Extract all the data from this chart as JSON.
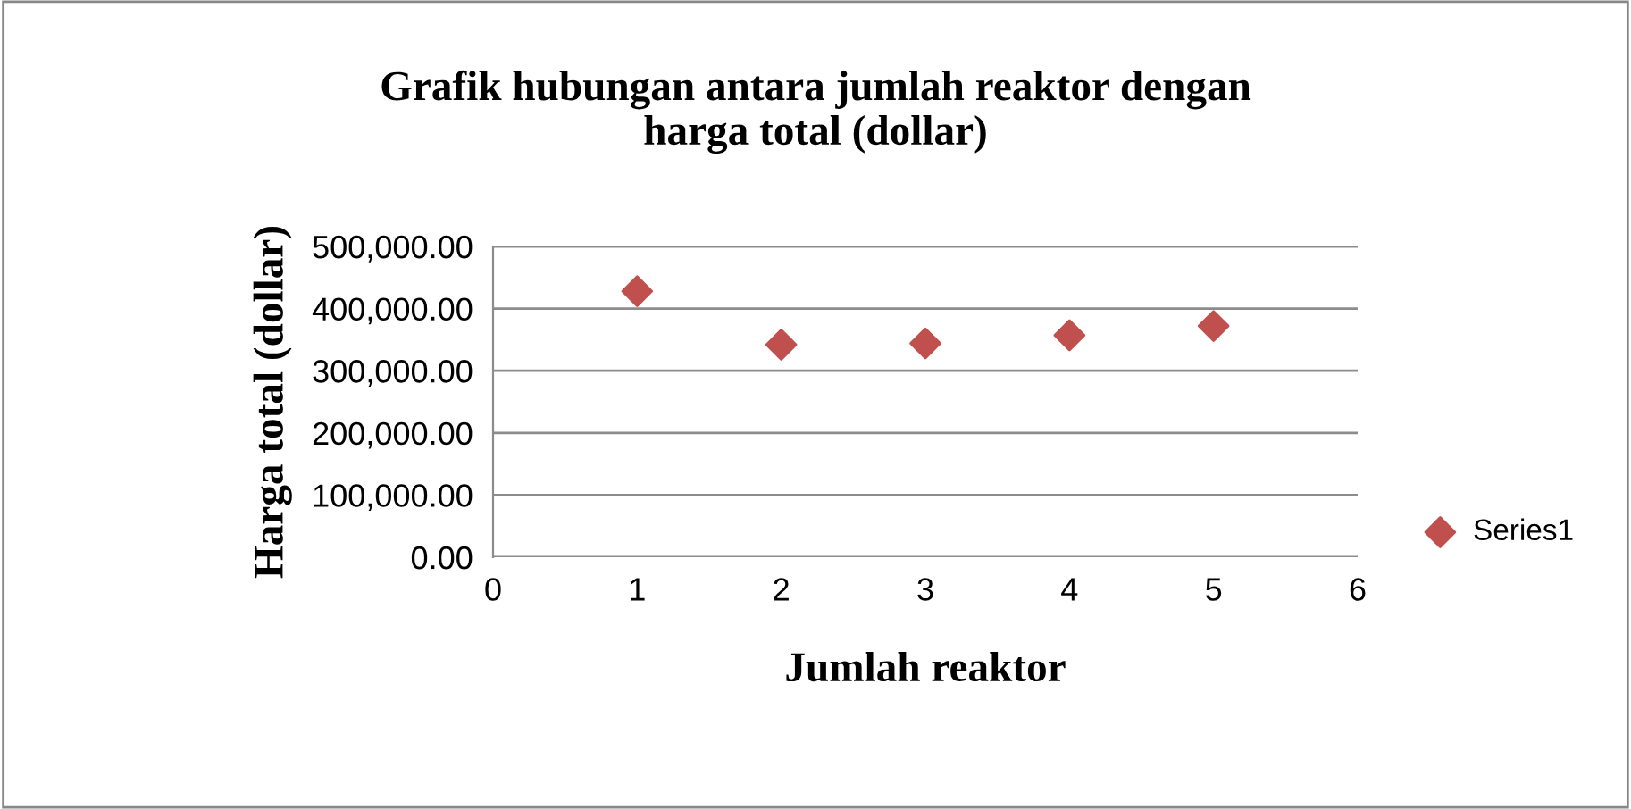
{
  "chart_data": {
    "type": "scatter",
    "title": "Grafik hubungan antara jumlah reaktor dengan\nharga total (dollar)",
    "xlabel": "Jumlah reaktor",
    "ylabel": "Harga total (dollar)",
    "x": [
      1,
      2,
      3,
      4,
      5
    ],
    "series": [
      {
        "name": "Series1",
        "color": "#c0504d",
        "values": [
          428000,
          342000,
          344000,
          357000,
          372000
        ]
      }
    ],
    "xlim": [
      0,
      6
    ],
    "xticks": [
      0,
      1,
      2,
      3,
      4,
      5,
      6
    ],
    "ylim": [
      0,
      500000
    ],
    "yticks": [
      {
        "value": 0,
        "label": "0.00"
      },
      {
        "value": 100000,
        "label": "100,000.00"
      },
      {
        "value": 200000,
        "label": "200,000.00"
      },
      {
        "value": 300000,
        "label": "300,000.00"
      },
      {
        "value": 400000,
        "label": "400,000.00"
      },
      {
        "value": 500000,
        "label": "500,000.00"
      }
    ],
    "grid": "y",
    "legend": "right",
    "marker": "diamond"
  }
}
